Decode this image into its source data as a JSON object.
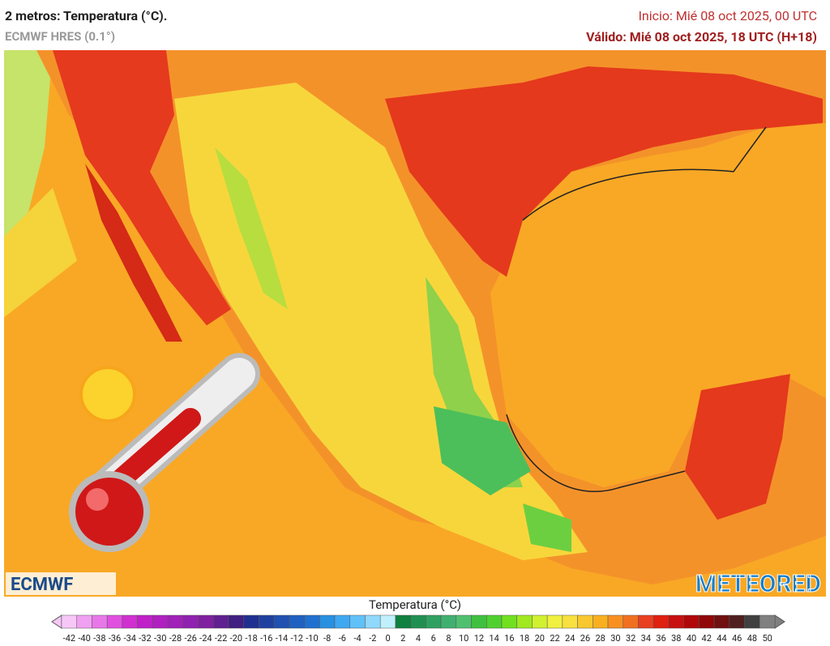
{
  "header": {
    "title": "2 metros: Temperatura (°C).",
    "subtitle": "ECMWF HRES (0.1°)",
    "start": "Inicio: Mié 08 oct 2025, 00 UTC",
    "valid": "Válido: Mié 08 oct 2025, 18 UTC (H+18)"
  },
  "logos": {
    "left": "ECMWF",
    "right": "METEORED"
  },
  "legend": {
    "title": "Temperatura (°C)",
    "ticks": [
      -42,
      -40,
      -38,
      -36,
      -34,
      -32,
      -30,
      -28,
      -26,
      -24,
      -22,
      -20,
      -18,
      -16,
      -14,
      -12,
      -10,
      -8,
      -6,
      -4,
      -2,
      0,
      2,
      4,
      6,
      8,
      10,
      12,
      14,
      16,
      18,
      20,
      22,
      24,
      26,
      28,
      30,
      32,
      34,
      36,
      38,
      40,
      42,
      44,
      46,
      48,
      50
    ],
    "colors": [
      "#f7c8f7",
      "#f0a0f0",
      "#e878e8",
      "#e050e0",
      "#d030d0",
      "#c020c8",
      "#b020c0",
      "#a020b8",
      "#9020b0",
      "#8020a0",
      "#602090",
      "#402080",
      "#203090",
      "#2040a0",
      "#2050b0",
      "#2060c0",
      "#2070d0",
      "#2890e0",
      "#40a8f0",
      "#60c0f8",
      "#90d8fc",
      "#c0f0fc",
      "#108040",
      "#209050",
      "#30a060",
      "#40b070",
      "#50c070",
      "#40c040",
      "#50d030",
      "#70e020",
      "#a0e820",
      "#d0f030",
      "#f0f040",
      "#f8e040",
      "#f8c830",
      "#f8b020",
      "#f89020",
      "#f07020",
      "#e84020",
      "#e02010",
      "#c81010",
      "#b00808",
      "#900808",
      "#701010",
      "#502020",
      "#404040",
      "#808080"
    ]
  }
}
